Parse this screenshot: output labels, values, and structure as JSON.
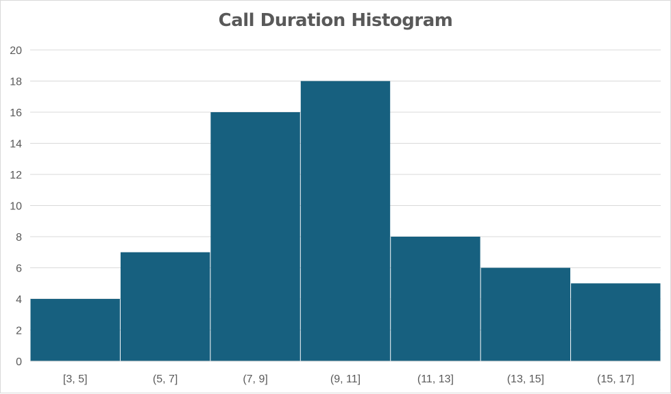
{
  "chart_data": {
    "type": "bar",
    "title": "Call Duration Histogram",
    "xlabel": "",
    "ylabel": "",
    "categories": [
      "[3, 5]",
      "(5, 7]",
      "(7, 9]",
      "(9, 11]",
      "(11, 13]",
      "(13, 15]",
      "(15, 17]"
    ],
    "values": [
      4,
      7,
      16,
      18,
      8,
      6,
      5
    ],
    "ylim": [
      0,
      20
    ],
    "yticks": [
      0,
      2,
      4,
      6,
      8,
      10,
      12,
      14,
      16,
      18,
      20
    ],
    "grid": true,
    "legend": "none",
    "bar_color": "#17607f",
    "grid_color": "#d9d9d9"
  }
}
